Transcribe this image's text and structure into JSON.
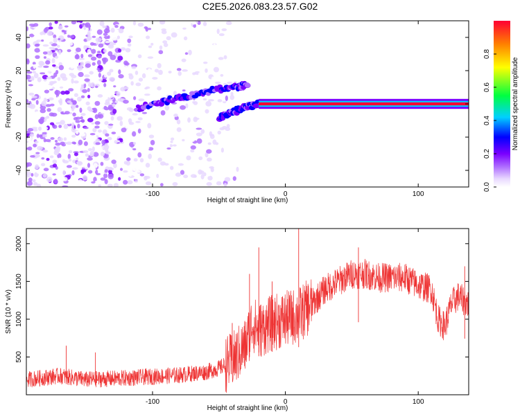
{
  "title": "C2E5.2026.083.23.57.G02",
  "colors": {
    "axis": "#000000",
    "snr_line": "#ee3333",
    "colormap": [
      "#ffffff",
      "#e8d8ff",
      "#b070ff",
      "#7a00ff",
      "#0000ff",
      "#00d0ff",
      "#00ff40",
      "#ffff00",
      "#ff8000",
      "#ff0033"
    ]
  },
  "chart_data": [
    {
      "type": "heatmap",
      "name": "spectrogram",
      "xlabel": "Height of straight line (km)",
      "ylabel": "Frequency (Hz)",
      "xlim": [
        -195,
        138
      ],
      "ylim": [
        -50,
        50
      ],
      "xticks": [
        -100,
        0,
        100
      ],
      "xtick_labels": [
        "-100",
        "0",
        "100"
      ],
      "yticks": [
        -40,
        -20,
        0,
        20,
        40
      ],
      "ytick_labels": [
        "-40",
        "-20",
        "0",
        "20",
        "40"
      ],
      "colorbar": {
        "label": "Normalized spectral amplitude",
        "range": [
          0,
          1
        ],
        "ticks": [
          0.0,
          0.2,
          0.4,
          0.6,
          0.8
        ],
        "tick_labels": [
          "0.0",
          "0.2",
          "0.4",
          "0.6",
          "0.8"
        ]
      },
      "features": {
        "noise_region_x": [
          -195,
          -45
        ],
        "upper_branch": [
          [
            -112,
            -3
          ],
          [
            -90,
            2
          ],
          [
            -70,
            5
          ],
          [
            -50,
            9
          ],
          [
            -35,
            10
          ],
          [
            -28,
            12
          ]
        ],
        "lower_branch": [
          [
            -50,
            -8
          ],
          [
            -40,
            -5
          ],
          [
            -30,
            -2
          ],
          [
            -20,
            0
          ]
        ],
        "steady_line": {
          "x": [
            -20,
            138
          ],
          "frequency": 0,
          "amplitude": 0.95
        }
      }
    },
    {
      "type": "line",
      "name": "snr",
      "xlabel": "Height of straight line (km)",
      "ylabel": "SNR (10 * v/v)",
      "xlim": [
        -195,
        138
      ],
      "ylim": [
        0,
        2200
      ],
      "xticks": [
        -100,
        0,
        100
      ],
      "xtick_labels": [
        "-100",
        "0",
        "100"
      ],
      "yticks": [
        500,
        1000,
        1500,
        2000
      ],
      "ytick_labels": [
        "500",
        "1000",
        "1500",
        "2000"
      ],
      "envelope": {
        "x": [
          -195,
          -170,
          -150,
          -120,
          -100,
          -80,
          -60,
          -50,
          -40,
          -30,
          -25,
          -20,
          -10,
          0,
          10,
          20,
          30,
          40,
          50,
          60,
          70,
          80,
          90,
          100,
          110,
          115,
          120,
          125,
          130,
          138
        ],
        "y": [
          200,
          250,
          200,
          220,
          240,
          260,
          300,
          350,
          450,
          650,
          950,
          850,
          950,
          1000,
          1050,
          1200,
          1400,
          1500,
          1600,
          1600,
          1550,
          1550,
          1550,
          1450,
          1400,
          1000,
          900,
          1200,
          1300,
          1200
        ]
      },
      "spikes": [
        [
          -195,
          500
        ],
        [
          -165,
          650
        ],
        [
          -143,
          560
        ],
        [
          -40,
          950
        ],
        [
          -27,
          1600
        ],
        [
          -20,
          1950
        ],
        [
          -10,
          1500
        ],
        [
          10,
          2200
        ],
        [
          55,
          1950
        ],
        [
          135,
          1700
        ]
      ]
    }
  ]
}
